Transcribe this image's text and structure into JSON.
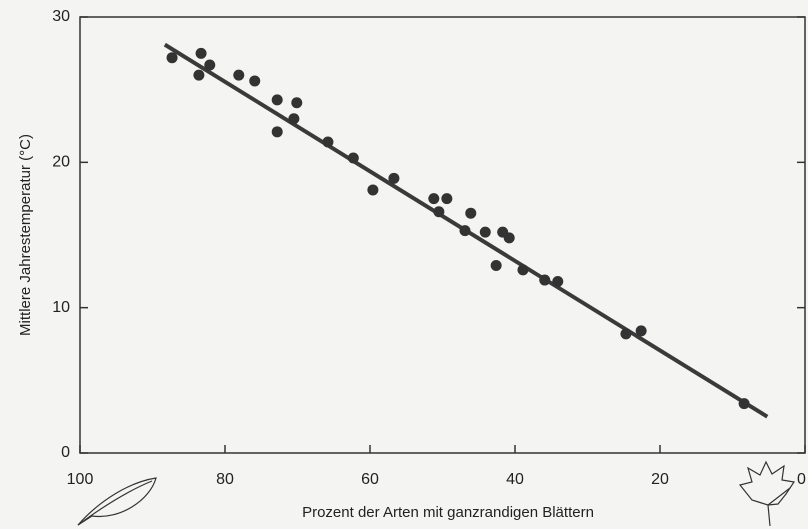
{
  "chart_data": {
    "type": "scatter",
    "x_label": "Prozent der Arten mit ganzrandigen Blättern",
    "y_label": "Mittlere Jahrestemperatur (°C)",
    "x": [
      87.3,
      83.3,
      83.6,
      82.1,
      78.1,
      75.9,
      72.8,
      72.8,
      70.1,
      70.5,
      65.8,
      62.3,
      59.6,
      56.7,
      51.2,
      49.4,
      50.5,
      46.1,
      46.9,
      44.1,
      41.7,
      40.8,
      42.6,
      38.9,
      35.9,
      34.1,
      24.7,
      22.6,
      8.4
    ],
    "y": [
      27.2,
      27.5,
      26.0,
      26.7,
      26.0,
      25.6,
      24.3,
      22.1,
      24.1,
      23.0,
      21.4,
      20.3,
      18.1,
      18.9,
      17.5,
      17.5,
      16.6,
      16.5,
      15.3,
      15.2,
      15.2,
      14.8,
      12.9,
      12.6,
      11.9,
      11.8,
      8.2,
      8.4,
      3.4
    ],
    "color": "#333333",
    "fit": {
      "x": [
        88.3,
        5.2
      ],
      "y": [
        28.1,
        2.5
      ],
      "color": "#3a3a3a"
    },
    "xlim": [
      100,
      0
    ],
    "xticks": [
      100,
      80,
      60,
      40,
      20,
      0
    ],
    "ylim": [
      0,
      30
    ],
    "yticks": [
      0,
      10,
      20,
      30
    ]
  }
}
